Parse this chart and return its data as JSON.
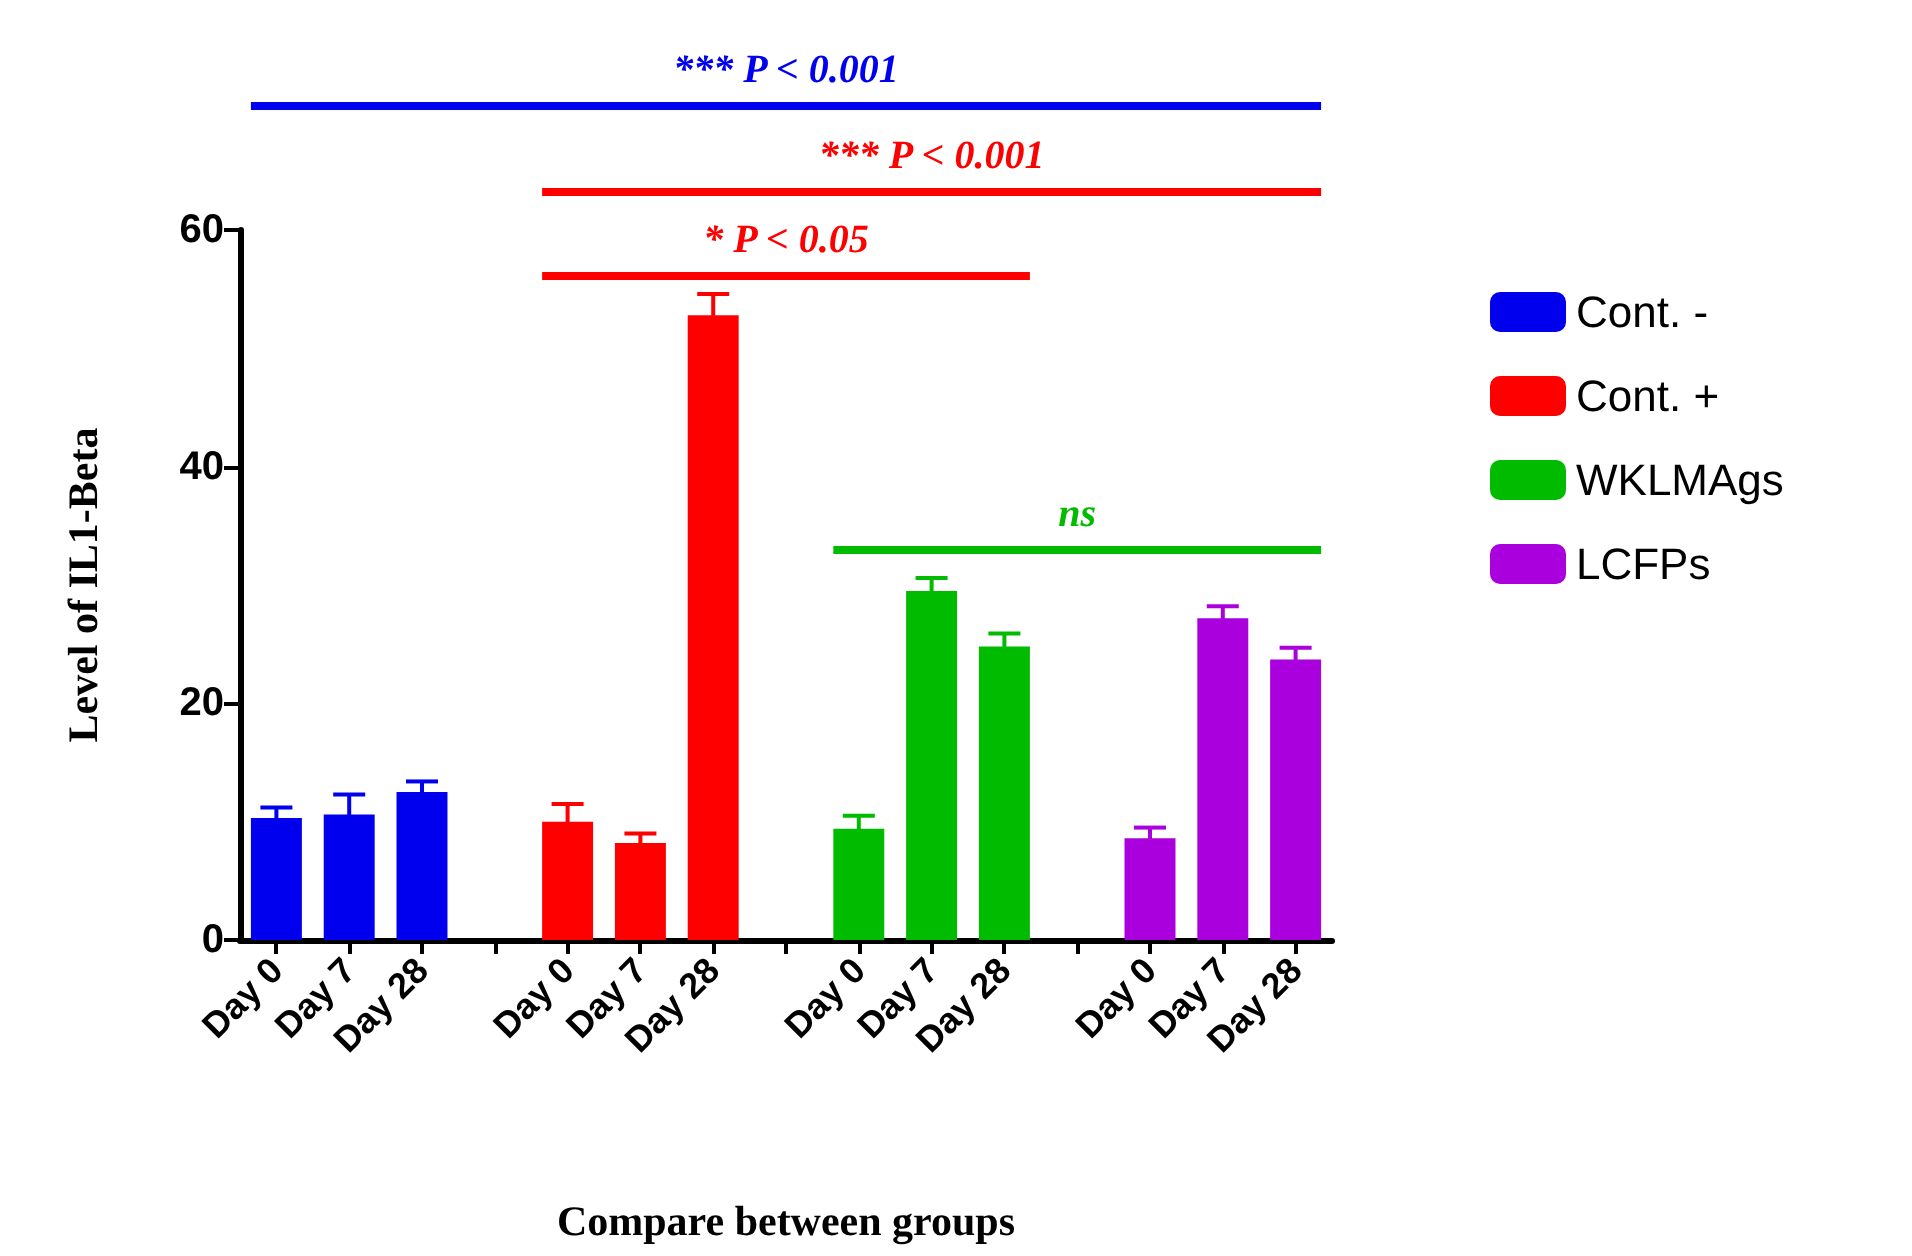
{
  "chart_data": {
    "type": "bar",
    "xlabel": "Compare between groups",
    "ylabel": "Level of IL1-Beta",
    "categories": [
      "Day 0",
      "Day 7",
      "Day 28",
      null,
      "Day 0",
      "Day 7",
      "Day 28",
      null,
      "Day 0",
      "Day 7",
      "Day 28",
      null,
      "Day 0",
      "Day 7",
      "Day 28"
    ],
    "series": [
      {
        "name": "Cont. -",
        "color": "#0000ee",
        "values": [
          10.3,
          10.6,
          12.5,
          null,
          null,
          null,
          null,
          null,
          null,
          null,
          null,
          null,
          null,
          null,
          null
        ],
        "errors": [
          0.9,
          1.7,
          0.9,
          null,
          null,
          null,
          null,
          null,
          null,
          null,
          null,
          null,
          null,
          null,
          null
        ]
      },
      {
        "name": "Cont. +",
        "color": "#ff0000",
        "values": [
          null,
          null,
          null,
          null,
          10.0,
          8.2,
          52.8,
          null,
          null,
          null,
          null,
          null,
          null,
          null,
          null
        ],
        "errors": [
          null,
          null,
          null,
          null,
          1.5,
          0.8,
          1.8,
          null,
          null,
          null,
          null,
          null,
          null,
          null,
          null
        ]
      },
      {
        "name": "WKLMAgs",
        "color": "#00bb00",
        "values": [
          null,
          null,
          null,
          null,
          null,
          null,
          null,
          null,
          9.4,
          29.5,
          24.8,
          null,
          null,
          null,
          null
        ],
        "errors": [
          null,
          null,
          null,
          null,
          null,
          null,
          null,
          null,
          1.1,
          1.1,
          1.1,
          null,
          null,
          null,
          null
        ]
      },
      {
        "name": "LCFPs",
        "color": "#aa00dd",
        "values": [
          null,
          null,
          null,
          null,
          null,
          null,
          null,
          null,
          null,
          null,
          null,
          null,
          8.6,
          27.2,
          23.7
        ],
        "errors": [
          null,
          null,
          null,
          null,
          null,
          null,
          null,
          null,
          null,
          null,
          null,
          null,
          0.9,
          1.0,
          1.0
        ]
      }
    ],
    "ylim": [
      0,
      60
    ],
    "yticks": [
      0,
      20,
      40,
      60
    ],
    "grid": false,
    "legend": "right",
    "annotations": [
      "*** P < 0.001",
      "*** P < 0.001",
      "* P < 0.05",
      "ns"
    ]
  }
}
